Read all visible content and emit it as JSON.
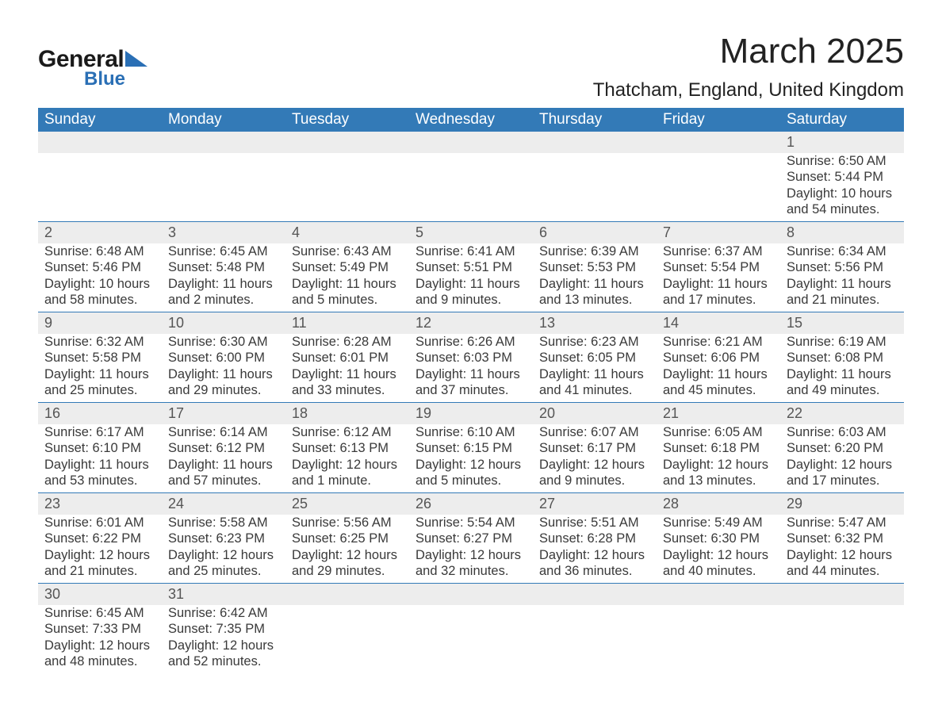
{
  "logo": {
    "text_general": "General",
    "text_blue": "Blue",
    "accent_color": "#2a6fb5"
  },
  "title": "March 2025",
  "location": "Thatcham, England, United Kingdom",
  "calendar": {
    "type": "table",
    "header_bg": "#337ab7",
    "header_fg": "#ffffff",
    "daynum_bg": "#ededed",
    "row_border_color": "#337ab7",
    "text_color": "#3a3a3a",
    "columns": [
      "Sunday",
      "Monday",
      "Tuesday",
      "Wednesday",
      "Thursday",
      "Friday",
      "Saturday"
    ],
    "label_sunrise": "Sunrise:",
    "label_sunset": "Sunset:",
    "label_daylight": "Daylight:",
    "weeks": [
      [
        null,
        null,
        null,
        null,
        null,
        null,
        {
          "n": "1",
          "sunrise": "6:50 AM",
          "sunset": "5:44 PM",
          "daylight": "10 hours and 54 minutes."
        }
      ],
      [
        {
          "n": "2",
          "sunrise": "6:48 AM",
          "sunset": "5:46 PM",
          "daylight": "10 hours and 58 minutes."
        },
        {
          "n": "3",
          "sunrise": "6:45 AM",
          "sunset": "5:48 PM",
          "daylight": "11 hours and 2 minutes."
        },
        {
          "n": "4",
          "sunrise": "6:43 AM",
          "sunset": "5:49 PM",
          "daylight": "11 hours and 5 minutes."
        },
        {
          "n": "5",
          "sunrise": "6:41 AM",
          "sunset": "5:51 PM",
          "daylight": "11 hours and 9 minutes."
        },
        {
          "n": "6",
          "sunrise": "6:39 AM",
          "sunset": "5:53 PM",
          "daylight": "11 hours and 13 minutes."
        },
        {
          "n": "7",
          "sunrise": "6:37 AM",
          "sunset": "5:54 PM",
          "daylight": "11 hours and 17 minutes."
        },
        {
          "n": "8",
          "sunrise": "6:34 AM",
          "sunset": "5:56 PM",
          "daylight": "11 hours and 21 minutes."
        }
      ],
      [
        {
          "n": "9",
          "sunrise": "6:32 AM",
          "sunset": "5:58 PM",
          "daylight": "11 hours and 25 minutes."
        },
        {
          "n": "10",
          "sunrise": "6:30 AM",
          "sunset": "6:00 PM",
          "daylight": "11 hours and 29 minutes."
        },
        {
          "n": "11",
          "sunrise": "6:28 AM",
          "sunset": "6:01 PM",
          "daylight": "11 hours and 33 minutes."
        },
        {
          "n": "12",
          "sunrise": "6:26 AM",
          "sunset": "6:03 PM",
          "daylight": "11 hours and 37 minutes."
        },
        {
          "n": "13",
          "sunrise": "6:23 AM",
          "sunset": "6:05 PM",
          "daylight": "11 hours and 41 minutes."
        },
        {
          "n": "14",
          "sunrise": "6:21 AM",
          "sunset": "6:06 PM",
          "daylight": "11 hours and 45 minutes."
        },
        {
          "n": "15",
          "sunrise": "6:19 AM",
          "sunset": "6:08 PM",
          "daylight": "11 hours and 49 minutes."
        }
      ],
      [
        {
          "n": "16",
          "sunrise": "6:17 AM",
          "sunset": "6:10 PM",
          "daylight": "11 hours and 53 minutes."
        },
        {
          "n": "17",
          "sunrise": "6:14 AM",
          "sunset": "6:12 PM",
          "daylight": "11 hours and 57 minutes."
        },
        {
          "n": "18",
          "sunrise": "6:12 AM",
          "sunset": "6:13 PM",
          "daylight": "12 hours and 1 minute."
        },
        {
          "n": "19",
          "sunrise": "6:10 AM",
          "sunset": "6:15 PM",
          "daylight": "12 hours and 5 minutes."
        },
        {
          "n": "20",
          "sunrise": "6:07 AM",
          "sunset": "6:17 PM",
          "daylight": "12 hours and 9 minutes."
        },
        {
          "n": "21",
          "sunrise": "6:05 AM",
          "sunset": "6:18 PM",
          "daylight": "12 hours and 13 minutes."
        },
        {
          "n": "22",
          "sunrise": "6:03 AM",
          "sunset": "6:20 PM",
          "daylight": "12 hours and 17 minutes."
        }
      ],
      [
        {
          "n": "23",
          "sunrise": "6:01 AM",
          "sunset": "6:22 PM",
          "daylight": "12 hours and 21 minutes."
        },
        {
          "n": "24",
          "sunrise": "5:58 AM",
          "sunset": "6:23 PM",
          "daylight": "12 hours and 25 minutes."
        },
        {
          "n": "25",
          "sunrise": "5:56 AM",
          "sunset": "6:25 PM",
          "daylight": "12 hours and 29 minutes."
        },
        {
          "n": "26",
          "sunrise": "5:54 AM",
          "sunset": "6:27 PM",
          "daylight": "12 hours and 32 minutes."
        },
        {
          "n": "27",
          "sunrise": "5:51 AM",
          "sunset": "6:28 PM",
          "daylight": "12 hours and 36 minutes."
        },
        {
          "n": "28",
          "sunrise": "5:49 AM",
          "sunset": "6:30 PM",
          "daylight": "12 hours and 40 minutes."
        },
        {
          "n": "29",
          "sunrise": "5:47 AM",
          "sunset": "6:32 PM",
          "daylight": "12 hours and 44 minutes."
        }
      ],
      [
        {
          "n": "30",
          "sunrise": "6:45 AM",
          "sunset": "7:33 PM",
          "daylight": "12 hours and 48 minutes."
        },
        {
          "n": "31",
          "sunrise": "6:42 AM",
          "sunset": "7:35 PM",
          "daylight": "12 hours and 52 minutes."
        },
        null,
        null,
        null,
        null,
        null
      ]
    ]
  }
}
